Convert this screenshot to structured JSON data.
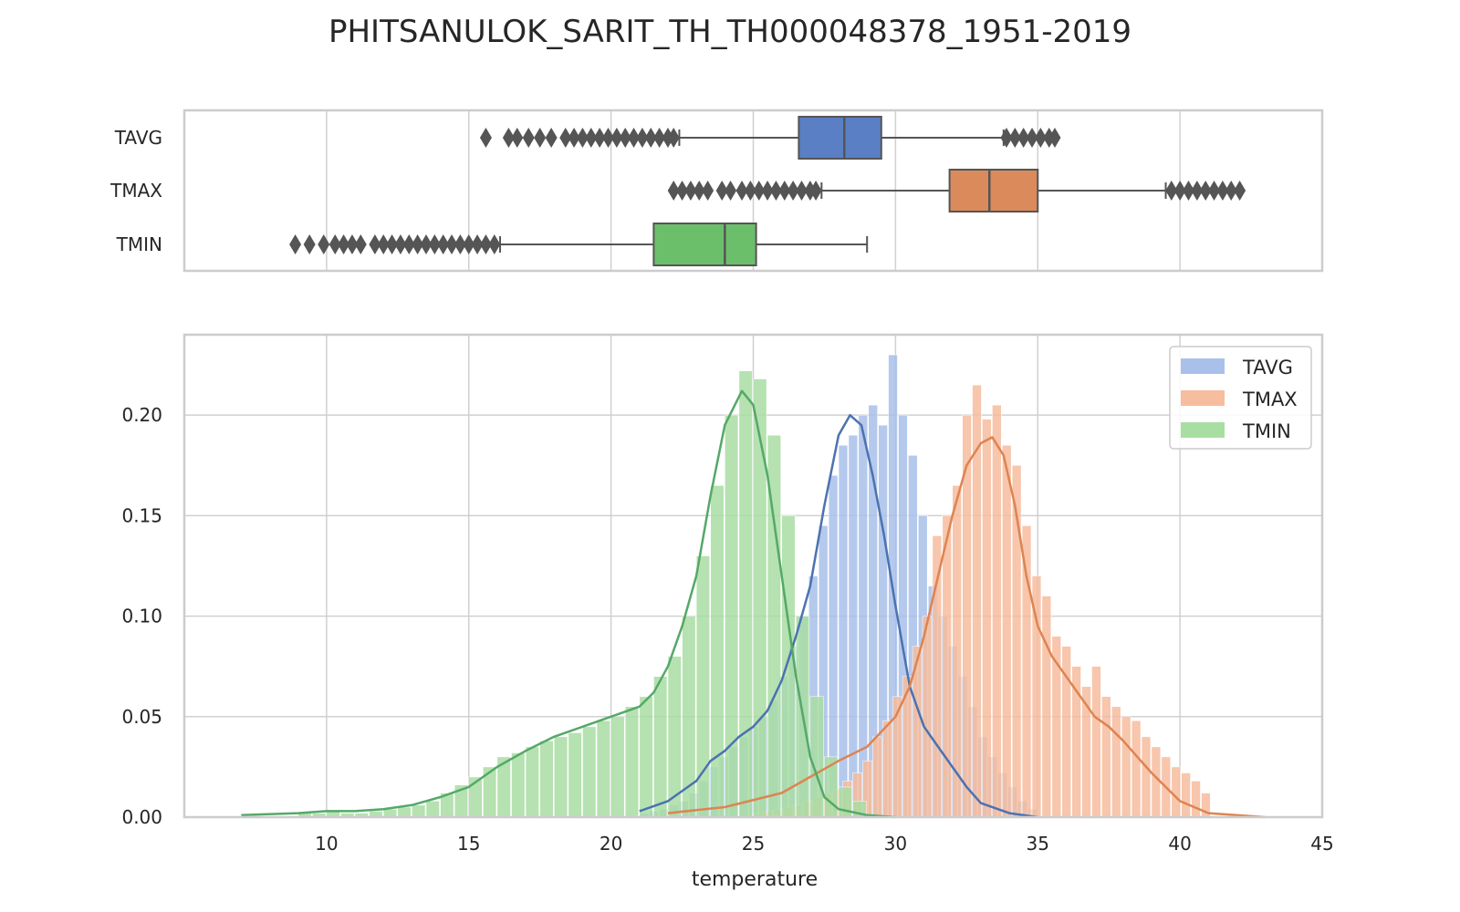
{
  "figure": {
    "title": "PHITSANULOK_SARIT_TH_TH000048378_1951-2019"
  },
  "colors": {
    "TAVG": "#4c72b0",
    "TMAX": "#dd8452",
    "TMIN": "#55a868",
    "box_TAVG": "#5a7fc4",
    "box_TMAX": "#db8a5c",
    "box_TMIN": "#6bbf6b",
    "hist_TAVG": "#a9c0ea",
    "hist_TMAX": "#f6bd9e",
    "hist_TMIN": "#a9dea3",
    "grid": "#d0d0d0",
    "frame": "#cccccc",
    "whisker": "#555555"
  },
  "chart_data": [
    {
      "type": "box",
      "orientation": "horizontal",
      "xlim": [
        5,
        45
      ],
      "xticks": [
        10,
        15,
        20,
        25,
        30,
        35,
        40,
        45
      ],
      "grid": true,
      "series": [
        {
          "name": "TAVG",
          "q1": 26.6,
          "median": 28.2,
          "q3": 29.5,
          "whisker_low": 22.4,
          "whisker_high": 33.8,
          "outliers": [
            15.6,
            16.4,
            16.7,
            17.1,
            17.5,
            17.9,
            18.4,
            18.7,
            19.0,
            19.3,
            19.6,
            19.9,
            20.2,
            20.5,
            20.8,
            21.1,
            21.4,
            21.7,
            22.0,
            22.2,
            33.9,
            34.2,
            34.5,
            34.8,
            35.1,
            35.4,
            35.6
          ]
        },
        {
          "name": "TMAX",
          "q1": 31.9,
          "median": 33.3,
          "q3": 35.0,
          "whisker_low": 27.4,
          "whisker_high": 39.5,
          "outliers": [
            22.2,
            22.5,
            22.8,
            23.1,
            23.4,
            23.9,
            24.2,
            24.6,
            24.9,
            25.2,
            25.5,
            25.8,
            26.1,
            26.4,
            26.7,
            27.0,
            27.2,
            39.7,
            40.0,
            40.3,
            40.6,
            40.9,
            41.2,
            41.5,
            41.8,
            42.1
          ]
        },
        {
          "name": "TMIN",
          "q1": 21.5,
          "median": 24.0,
          "q3": 25.1,
          "whisker_low": 16.1,
          "whisker_high": 29.0,
          "outliers": [
            8.9,
            9.4,
            9.9,
            10.3,
            10.6,
            10.9,
            11.2,
            11.7,
            12.0,
            12.3,
            12.6,
            12.9,
            13.2,
            13.5,
            13.8,
            14.1,
            14.4,
            14.7,
            15.0,
            15.3,
            15.6,
            15.9
          ]
        }
      ]
    },
    {
      "type": "histogram_kde",
      "xlabel": "temperature",
      "ylabel": "",
      "xlim": [
        5,
        45
      ],
      "ylim": [
        0,
        0.24
      ],
      "xticks": [
        10,
        15,
        20,
        25,
        30,
        35,
        40,
        45
      ],
      "yticks": [
        0.0,
        0.05,
        0.1,
        0.15,
        0.2
      ],
      "ytick_labels": [
        "0.00",
        "0.05",
        "0.10",
        "0.15",
        "0.20"
      ],
      "grid": true,
      "legend": {
        "position": "top-right",
        "entries": [
          "TAVG",
          "TMAX",
          "TMIN"
        ]
      },
      "series": [
        {
          "name": "TAVG",
          "bin_start": 21.0,
          "bin_width": 0.35,
          "hist": [
            0.002,
            0.003,
            0.004,
            0.006,
            0.008,
            0.012,
            0.018,
            0.025,
            0.03,
            0.035,
            0.04,
            0.045,
            0.05,
            0.058,
            0.07,
            0.085,
            0.1,
            0.12,
            0.145,
            0.17,
            0.185,
            0.19,
            0.2,
            0.205,
            0.195,
            0.23,
            0.2,
            0.18,
            0.15,
            0.115,
            0.1,
            0.085,
            0.07,
            0.055,
            0.04,
            0.03,
            0.022,
            0.015,
            0.008,
            0.004
          ],
          "kde": [
            [
              21,
              0.003
            ],
            [
              22,
              0.008
            ],
            [
              23,
              0.018
            ],
            [
              23.5,
              0.028
            ],
            [
              24,
              0.033
            ],
            [
              24.5,
              0.04
            ],
            [
              25,
              0.045
            ],
            [
              25.5,
              0.053
            ],
            [
              26,
              0.068
            ],
            [
              26.5,
              0.09
            ],
            [
              27,
              0.115
            ],
            [
              27.5,
              0.155
            ],
            [
              28,
              0.19
            ],
            [
              28.4,
              0.2
            ],
            [
              28.8,
              0.195
            ],
            [
              29.2,
              0.17
            ],
            [
              29.6,
              0.14
            ],
            [
              30,
              0.105
            ],
            [
              30.5,
              0.065
            ],
            [
              31,
              0.045
            ],
            [
              31.5,
              0.035
            ],
            [
              32,
              0.025
            ],
            [
              32.5,
              0.015
            ],
            [
              33,
              0.007
            ],
            [
              34,
              0.002
            ],
            [
              35,
              0.0
            ]
          ]
        },
        {
          "name": "TMAX",
          "bin_start": 25.0,
          "bin_width": 0.35,
          "hist": [
            0.002,
            0.003,
            0.004,
            0.005,
            0.006,
            0.008,
            0.01,
            0.012,
            0.014,
            0.018,
            0.022,
            0.028,
            0.04,
            0.048,
            0.06,
            0.07,
            0.085,
            0.1,
            0.14,
            0.15,
            0.165,
            0.2,
            0.215,
            0.198,
            0.205,
            0.185,
            0.175,
            0.145,
            0.12,
            0.11,
            0.09,
            0.085,
            0.075,
            0.065,
            0.075,
            0.06,
            0.055,
            0.05,
            0.048,
            0.04,
            0.035,
            0.03,
            0.025,
            0.022,
            0.018,
            0.012
          ],
          "kde": [
            [
              22,
              0.002
            ],
            [
              24,
              0.005
            ],
            [
              26,
              0.012
            ],
            [
              27,
              0.02
            ],
            [
              28,
              0.028
            ],
            [
              29,
              0.035
            ],
            [
              30,
              0.05
            ],
            [
              30.5,
              0.065
            ],
            [
              31,
              0.09
            ],
            [
              31.5,
              0.12
            ],
            [
              32,
              0.15
            ],
            [
              32.5,
              0.175
            ],
            [
              33,
              0.186
            ],
            [
              33.4,
              0.189
            ],
            [
              33.8,
              0.18
            ],
            [
              34.2,
              0.155
            ],
            [
              34.6,
              0.12
            ],
            [
              35,
              0.095
            ],
            [
              35.5,
              0.08
            ],
            [
              36,
              0.07
            ],
            [
              36.5,
              0.06
            ],
            [
              37,
              0.05
            ],
            [
              37.5,
              0.045
            ],
            [
              38,
              0.038
            ],
            [
              38.5,
              0.03
            ],
            [
              39,
              0.022
            ],
            [
              39.5,
              0.015
            ],
            [
              40,
              0.008
            ],
            [
              41,
              0.002
            ],
            [
              43,
              0.0
            ]
          ]
        },
        {
          "name": "TMIN",
          "bin_start": 9.0,
          "bin_width": 0.5,
          "hist": [
            0.002,
            0.002,
            0.003,
            0.002,
            0.002,
            0.003,
            0.004,
            0.005,
            0.006,
            0.008,
            0.012,
            0.016,
            0.02,
            0.025,
            0.03,
            0.032,
            0.035,
            0.038,
            0.04,
            0.042,
            0.045,
            0.048,
            0.05,
            0.055,
            0.06,
            0.07,
            0.08,
            0.1,
            0.13,
            0.165,
            0.2,
            0.222,
            0.218,
            0.19,
            0.15,
            0.1,
            0.06,
            0.03,
            0.015,
            0.008
          ],
          "kde": [
            [
              7,
              0.001
            ],
            [
              9,
              0.002
            ],
            [
              10,
              0.003
            ],
            [
              11,
              0.003
            ],
            [
              12,
              0.004
            ],
            [
              13,
              0.006
            ],
            [
              14,
              0.01
            ],
            [
              15,
              0.015
            ],
            [
              16,
              0.025
            ],
            [
              17,
              0.033
            ],
            [
              18,
              0.04
            ],
            [
              19,
              0.045
            ],
            [
              20,
              0.05
            ],
            [
              21,
              0.055
            ],
            [
              21.5,
              0.062
            ],
            [
              22,
              0.075
            ],
            [
              22.5,
              0.095
            ],
            [
              23,
              0.12
            ],
            [
              23.5,
              0.16
            ],
            [
              24,
              0.195
            ],
            [
              24.6,
              0.212
            ],
            [
              25,
              0.205
            ],
            [
              25.5,
              0.17
            ],
            [
              26,
              0.12
            ],
            [
              26.5,
              0.07
            ],
            [
              27,
              0.03
            ],
            [
              27.5,
              0.01
            ],
            [
              28,
              0.004
            ],
            [
              29,
              0.001
            ],
            [
              30,
              0.0
            ]
          ]
        }
      ]
    }
  ]
}
